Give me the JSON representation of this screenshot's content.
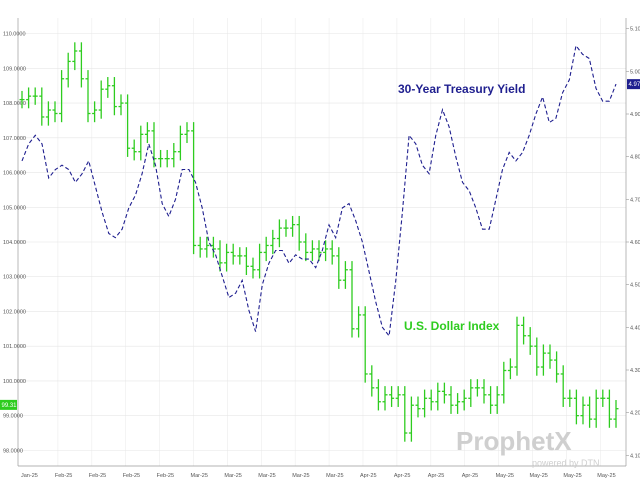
{
  "chart_data": {
    "type": "line",
    "title": "",
    "xlabel": "",
    "ylabel_left": "",
    "ylabel_right": "",
    "left_axis_ticks": [
      "110.0000",
      "109.0000",
      "108.0000",
      "107.0000",
      "106.0000",
      "105.0000",
      "104.0000",
      "103.0000",
      "102.0000",
      "101.0000",
      "100.0000",
      "99.0000",
      "98.0000"
    ],
    "left_axis_range": [
      97.55,
      110.45
    ],
    "right_axis_ticks": [
      "5.100",
      "5.000",
      "4.900",
      "4.800",
      "4.700",
      "4.600",
      "4.500",
      "4.400",
      "4.300",
      "4.200",
      "4.100"
    ],
    "right_axis_range": [
      4.075,
      5.125
    ],
    "x_ticks": [
      "Jan-25",
      "Feb-25",
      "Feb-25",
      "Feb-25",
      "Feb-25",
      "Mar-25",
      "Mar-25",
      "Mar-25",
      "Mar-25",
      "Mar-25",
      "Apr-25",
      "Apr-25",
      "Apr-25",
      "Apr-25",
      "May-25",
      "May-25",
      "May-25",
      "May-25"
    ],
    "grid": true,
    "series": [
      {
        "name": "U.S. Dollar Index",
        "axis": "left",
        "color": "#2ecc1f",
        "style": "ohlc-bars",
        "values": [
          108.1,
          108.2,
          108.2,
          107.6,
          107.8,
          107.7,
          108.7,
          109.2,
          109.5,
          108.7,
          107.7,
          107.8,
          108.4,
          108.5,
          107.9,
          108.0,
          106.7,
          106.6,
          107.1,
          107.2,
          106.4,
          106.4,
          106.4,
          106.6,
          107.1,
          107.2,
          103.9,
          103.8,
          103.9,
          103.8,
          103.4,
          103.7,
          103.6,
          103.6,
          103.3,
          103.2,
          103.7,
          103.9,
          104.1,
          104.4,
          104.4,
          104.5,
          104.0,
          103.7,
          103.8,
          103.7,
          103.8,
          103.6,
          102.9,
          103.2,
          101.5,
          101.9,
          100.2,
          99.8,
          99.4,
          99.6,
          99.5,
          99.6,
          98.5,
          99.3,
          99.2,
          99.5,
          99.4,
          99.7,
          99.6,
          99.3,
          99.4,
          99.5,
          99.8,
          99.8,
          99.6,
          99.3,
          99.6,
          100.3,
          100.4,
          101.6,
          101.3,
          101.0,
          100.4,
          100.8,
          100.6,
          100.2,
          99.5,
          99.5,
          99.0,
          99.3,
          98.9,
          99.5,
          99.5,
          98.9,
          99.2
        ]
      },
      {
        "name": "30-Year Treasury Yield",
        "axis": "right",
        "color": "#1f1f8f",
        "style": "dashed-line",
        "values": [
          4.79,
          4.83,
          4.85,
          4.83,
          4.75,
          4.77,
          4.78,
          4.77,
          4.74,
          4.76,
          4.79,
          4.73,
          4.67,
          4.62,
          4.61,
          4.63,
          4.68,
          4.71,
          4.76,
          4.83,
          4.78,
          4.69,
          4.66,
          4.7,
          4.77,
          4.77,
          4.74,
          4.68,
          4.6,
          4.57,
          4.52,
          4.47,
          4.48,
          4.51,
          4.44,
          4.39,
          4.5,
          4.55,
          4.58,
          4.58,
          4.55,
          4.57,
          4.56,
          4.56,
          4.54,
          4.58,
          4.64,
          4.61,
          4.68,
          4.69,
          4.65,
          4.6,
          4.53,
          4.46,
          4.4,
          4.38,
          4.51,
          4.67,
          4.85,
          4.83,
          4.78,
          4.76,
          4.85,
          4.91,
          4.87,
          4.8,
          4.74,
          4.72,
          4.68,
          4.63,
          4.63,
          4.7,
          4.77,
          4.81,
          4.79,
          4.81,
          4.85,
          4.9,
          4.94,
          4.88,
          4.89,
          4.95,
          4.98,
          5.06,
          5.04,
          5.03,
          4.96,
          4.93,
          4.93,
          4.97
        ]
      }
    ],
    "annotations": [
      {
        "text": "30-Year Treasury Yield",
        "color": "#1f1f8f"
      },
      {
        "text": "U.S. Dollar Index",
        "color": "#2ecc1f"
      }
    ],
    "last_value_badges": [
      {
        "axis": "left",
        "text": "99.31",
        "color": "#2ecc1f"
      },
      {
        "axis": "right",
        "text": "4.97",
        "color": "#1f1f8f"
      }
    ]
  },
  "watermark": {
    "brand": "ProphetX",
    "tagline": "powered by DTN"
  }
}
